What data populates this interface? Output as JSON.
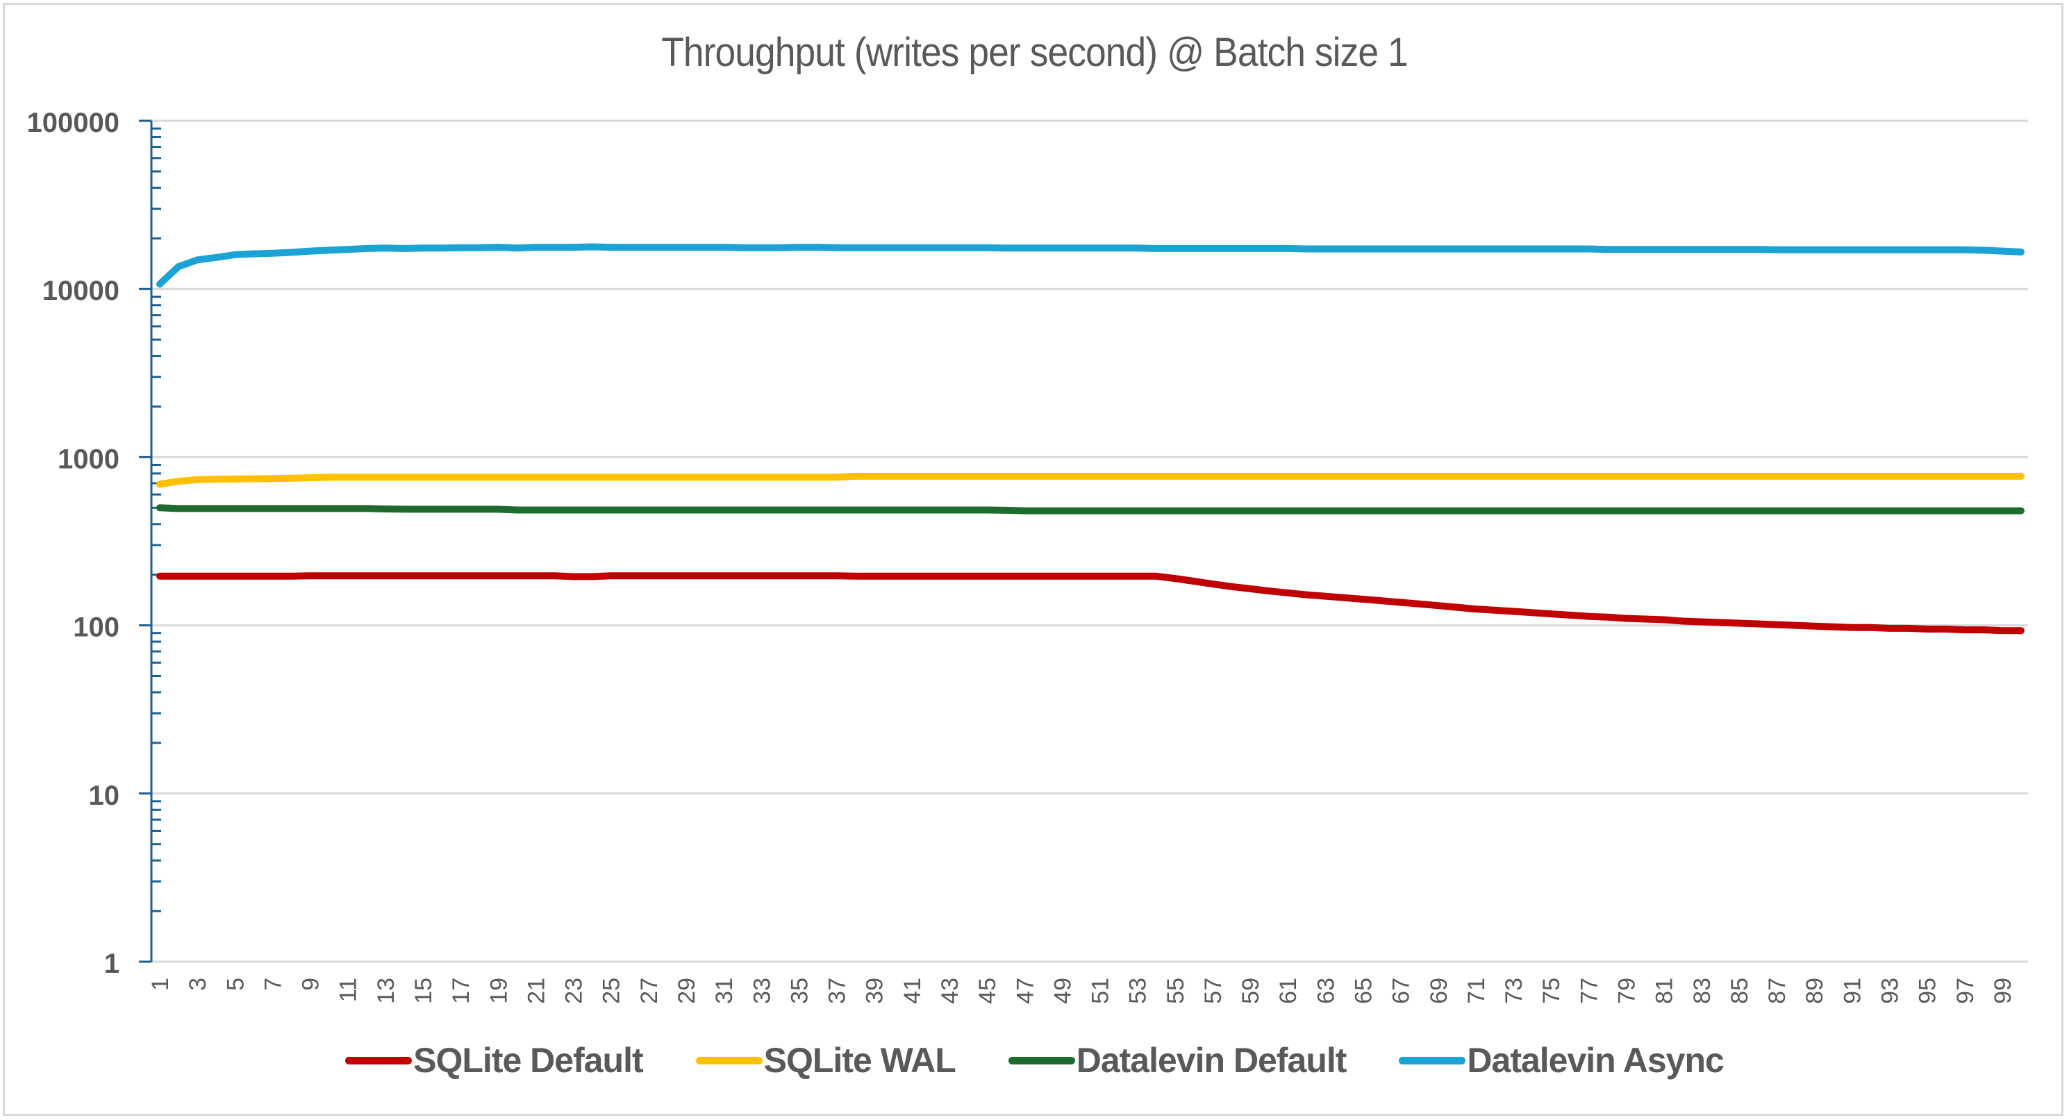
{
  "chart_data": {
    "type": "line",
    "title": "Throughput (writes per second) @ Batch size 1",
    "xlabel": "",
    "ylabel": "",
    "yscale": "log",
    "ylim": [
      1,
      100000
    ],
    "yticks": [
      "1",
      "10",
      "100",
      "1000",
      "10000",
      "100000"
    ],
    "x": [
      1,
      2,
      3,
      4,
      5,
      6,
      7,
      8,
      9,
      10,
      11,
      12,
      13,
      14,
      15,
      16,
      17,
      18,
      19,
      20,
      21,
      22,
      23,
      24,
      25,
      26,
      27,
      28,
      29,
      30,
      31,
      32,
      33,
      34,
      35,
      36,
      37,
      38,
      39,
      40,
      41,
      42,
      43,
      44,
      45,
      46,
      47,
      48,
      49,
      50,
      51,
      52,
      53,
      54,
      55,
      56,
      57,
      58,
      59,
      60,
      61,
      62,
      63,
      64,
      65,
      66,
      67,
      68,
      69,
      70,
      71,
      72,
      73,
      74,
      75,
      76,
      77,
      78,
      79,
      80,
      81,
      82,
      83,
      84,
      85,
      86,
      87,
      88,
      89,
      90,
      91,
      92,
      93,
      94,
      95,
      96,
      97,
      98,
      99,
      100
    ],
    "xtick_labels": [
      "1",
      "3",
      "5",
      "7",
      "9",
      "11",
      "13",
      "15",
      "17",
      "19",
      "21",
      "23",
      "25",
      "27",
      "29",
      "31",
      "33",
      "35",
      "37",
      "39",
      "41",
      "43",
      "45",
      "47",
      "49",
      "51",
      "53",
      "55",
      "57",
      "59",
      "61",
      "63",
      "65",
      "67",
      "69",
      "71",
      "73",
      "75",
      "77",
      "79",
      "81",
      "83",
      "85",
      "87",
      "89",
      "91",
      "93",
      "95",
      "97",
      "99"
    ],
    "grid": true,
    "legend_position": "bottom",
    "series": [
      {
        "name": "SQLite Default",
        "color": "#c00000",
        "values": [
          196,
          196,
          196,
          196,
          196,
          196,
          196,
          196,
          197,
          197,
          197,
          197,
          197,
          197,
          197,
          197,
          197,
          197,
          197,
          197,
          197,
          197,
          195,
          195,
          197,
          197,
          197,
          197,
          197,
          197,
          197,
          197,
          197,
          197,
          197,
          197,
          197,
          196,
          196,
          196,
          196,
          196,
          196,
          196,
          196,
          196,
          196,
          196,
          196,
          196,
          196,
          196,
          196,
          196,
          190,
          183,
          176,
          170,
          165,
          160,
          156,
          152,
          149,
          146,
          143,
          140,
          137,
          134,
          131,
          128,
          125,
          123,
          121,
          119,
          117,
          115,
          113,
          112,
          110,
          109,
          108,
          106,
          105,
          104,
          103,
          102,
          101,
          100,
          99,
          98,
          97,
          97,
          96,
          96,
          95,
          95,
          94,
          94,
          93,
          93
        ]
      },
      {
        "name": "SQLite WAL",
        "color": "#ffc000",
        "values": [
          690,
          720,
          735,
          740,
          742,
          744,
          746,
          750,
          755,
          760,
          760,
          760,
          760,
          760,
          760,
          760,
          760,
          760,
          760,
          760,
          760,
          760,
          760,
          760,
          760,
          760,
          760,
          760,
          760,
          760,
          760,
          760,
          760,
          760,
          760,
          760,
          760,
          770,
          770,
          770,
          770,
          770,
          770,
          770,
          770,
          770,
          770,
          770,
          770,
          770,
          770,
          770,
          770,
          770,
          770,
          770,
          770,
          770,
          770,
          770,
          770,
          770,
          770,
          770,
          770,
          770,
          770,
          770,
          770,
          770,
          770,
          770,
          770,
          770,
          770,
          770,
          770,
          770,
          770,
          770,
          770,
          770,
          770,
          770,
          770,
          770,
          770,
          770,
          770,
          770,
          770,
          770,
          770,
          770,
          770,
          770,
          770,
          770,
          770,
          770
        ]
      },
      {
        "name": "Datalevin Default",
        "color": "#1e6b2e",
        "values": [
          500,
          495,
          495,
          495,
          495,
          495,
          495,
          495,
          495,
          495,
          495,
          495,
          492,
          490,
          490,
          490,
          490,
          490,
          490,
          485,
          485,
          485,
          485,
          485,
          485,
          485,
          485,
          485,
          485,
          485,
          485,
          485,
          485,
          485,
          485,
          485,
          485,
          485,
          485,
          485,
          485,
          485,
          485,
          485,
          485,
          483,
          480,
          480,
          480,
          480,
          480,
          480,
          480,
          480,
          480,
          480,
          480,
          480,
          480,
          480,
          480,
          480,
          480,
          480,
          480,
          480,
          480,
          480,
          480,
          480,
          480,
          480,
          480,
          480,
          480,
          480,
          480,
          480,
          480,
          480,
          480,
          480,
          480,
          480,
          480,
          480,
          480,
          480,
          480,
          480,
          480,
          480,
          480,
          480,
          480,
          480,
          480,
          480,
          480,
          480
        ]
      },
      {
        "name": "Datalevin Async",
        "color": "#1aa3d4",
        "values": [
          10700,
          13600,
          14900,
          15400,
          16000,
          16200,
          16300,
          16500,
          16800,
          17000,
          17200,
          17400,
          17500,
          17400,
          17500,
          17500,
          17600,
          17600,
          17700,
          17500,
          17700,
          17700,
          17700,
          17800,
          17700,
          17700,
          17700,
          17700,
          17700,
          17700,
          17700,
          17600,
          17600,
          17600,
          17700,
          17700,
          17600,
          17600,
          17600,
          17600,
          17600,
          17600,
          17600,
          17600,
          17600,
          17500,
          17500,
          17500,
          17500,
          17500,
          17500,
          17500,
          17500,
          17400,
          17400,
          17400,
          17400,
          17400,
          17400,
          17400,
          17400,
          17300,
          17300,
          17300,
          17300,
          17300,
          17300,
          17300,
          17300,
          17300,
          17300,
          17300,
          17300,
          17300,
          17300,
          17300,
          17300,
          17200,
          17200,
          17200,
          17200,
          17200,
          17200,
          17200,
          17200,
          17200,
          17100,
          17100,
          17100,
          17100,
          17100,
          17100,
          17100,
          17100,
          17100,
          17100,
          17100,
          17000,
          16800,
          16600
        ]
      }
    ]
  },
  "title": "Throughput (writes per second) @ Batch size 1",
  "legend": [
    {
      "label": "SQLite Default",
      "color": "#c00000"
    },
    {
      "label": "SQLite WAL",
      "color": "#ffc000"
    },
    {
      "label": "Datalevin Default",
      "color": "#1e6b2e"
    },
    {
      "label": "Datalevin Async",
      "color": "#1aa3d4"
    }
  ],
  "colors": {
    "axis": "#1f5f8f",
    "grid": "#d9d9d9",
    "text": "#595959"
  }
}
